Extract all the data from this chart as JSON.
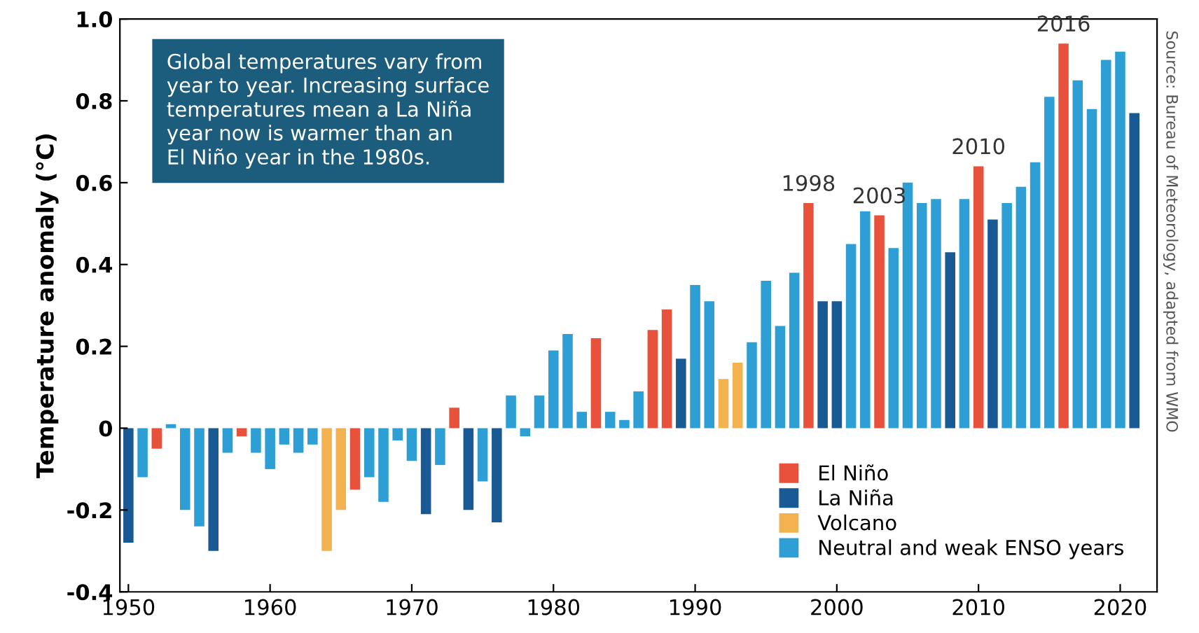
{
  "chart_data": {
    "type": "bar",
    "ylabel": "Temperature anomaly (°C)",
    "xlim": [
      1949.4,
      2022.6
    ],
    "xticks": [
      1950,
      1960,
      1970,
      1980,
      1990,
      2000,
      2010,
      2020
    ],
    "ylim": [
      -0.4,
      1.0
    ],
    "yticks": [
      -0.4,
      -0.2,
      0,
      0.2,
      0.4,
      0.6,
      0.8,
      {
        "value": 1.0,
        "label": "1.0"
      }
    ],
    "grid": false,
    "legend": "bottom right",
    "series": [
      {
        "name": "El Niño",
        "color": "#e8513b",
        "x": [
          1952,
          1958,
          1966,
          1973,
          1983,
          1987,
          1988,
          1998,
          2003,
          2010,
          2016
        ],
        "values": [
          -0.05,
          -0.02,
          -0.15,
          0.05,
          0.22,
          0.24,
          0.29,
          0.55,
          0.52,
          0.64,
          0.94
        ]
      },
      {
        "name": "La Niña",
        "color": "#1a5a94",
        "x": [
          1950,
          1956,
          1971,
          1974,
          1976,
          1989,
          1999,
          2000,
          2008,
          2011,
          2021
        ],
        "values": [
          -0.28,
          -0.3,
          -0.21,
          -0.2,
          -0.23,
          0.17,
          0.31,
          0.31,
          0.43,
          0.51,
          0.77
        ]
      },
      {
        "name": "Volcano",
        "color": "#f2b250",
        "x": [
          1964,
          1965,
          1992,
          1993
        ],
        "values": [
          -0.3,
          -0.2,
          0.12,
          0.16
        ]
      },
      {
        "name": "Neutral and weak ENSO years",
        "color": "#2d9fd4",
        "x": [
          1951,
          1953,
          1954,
          1955,
          1957,
          1959,
          1960,
          1961,
          1962,
          1963,
          1967,
          1968,
          1969,
          1970,
          1972,
          1975,
          1977,
          1978,
          1979,
          1980,
          1981,
          1982,
          1984,
          1985,
          1986,
          1990,
          1991,
          1994,
          1995,
          1996,
          1997,
          2001,
          2002,
          2004,
          2005,
          2006,
          2007,
          2009,
          2012,
          2013,
          2014,
          2015,
          2017,
          2018,
          2019,
          2020
        ],
        "values": [
          -0.12,
          0.01,
          -0.2,
          -0.24,
          -0.06,
          -0.06,
          -0.1,
          -0.04,
          -0.06,
          -0.04,
          -0.12,
          -0.18,
          -0.03,
          -0.08,
          -0.09,
          -0.13,
          0.08,
          -0.02,
          0.08,
          0.19,
          0.23,
          0.04,
          0.04,
          0.02,
          0.09,
          0.35,
          0.31,
          0.21,
          0.36,
          0.25,
          0.38,
          0.45,
          0.53,
          0.44,
          0.6,
          0.55,
          0.56,
          0.56,
          0.55,
          0.59,
          0.65,
          0.81,
          0.85,
          0.78,
          0.9,
          0.92
        ]
      }
    ],
    "annotations": [
      "Global temperatures vary from\nyear to year. Increasing surface\ntemperatures mean a La Niña\nyear now is warmer than an\nEl Niño year in the 1980s.",
      {
        "text": "1998",
        "x": 1998,
        "y": 0.55
      },
      {
        "text": "2003",
        "x": 2003,
        "y": 0.52
      },
      {
        "text": "2010",
        "x": 2010,
        "y": 0.64
      },
      {
        "text": "2016",
        "x": 2016,
        "y": 0.94
      },
      "Source: Bureau of Meteorology, adapted from WMO"
    ]
  }
}
